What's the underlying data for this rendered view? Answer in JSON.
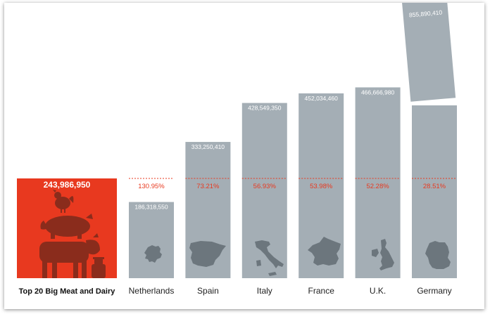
{
  "chart_data": {
    "type": "bar",
    "title": "",
    "xlabel": "",
    "ylabel": "",
    "reference": {
      "category": "Top 20 Big Meat and Dairy",
      "value": 243986950,
      "label": "243,986,950",
      "color": "#e8391f"
    },
    "categories": [
      "Netherlands",
      "Spain",
      "Italy",
      "France",
      "U.K.",
      "Germany"
    ],
    "values": [
      186318550,
      333250410,
      428549350,
      452034460,
      466666980,
      855890410
    ],
    "value_labels": [
      "186,318,550",
      "333,250,410",
      "428,549,350",
      "452,034,460",
      "466,666,980",
      "855,890,410"
    ],
    "ratio_labels": [
      "130.95%",
      "73.21%",
      "56.93%",
      "53.98%",
      "52.28%",
      "28.51%"
    ],
    "bar_color": "#a4aeb5",
    "silhouette_color": "#6c767d",
    "reference_line_color": "#e8391f",
    "broken_bar": "Germany"
  }
}
